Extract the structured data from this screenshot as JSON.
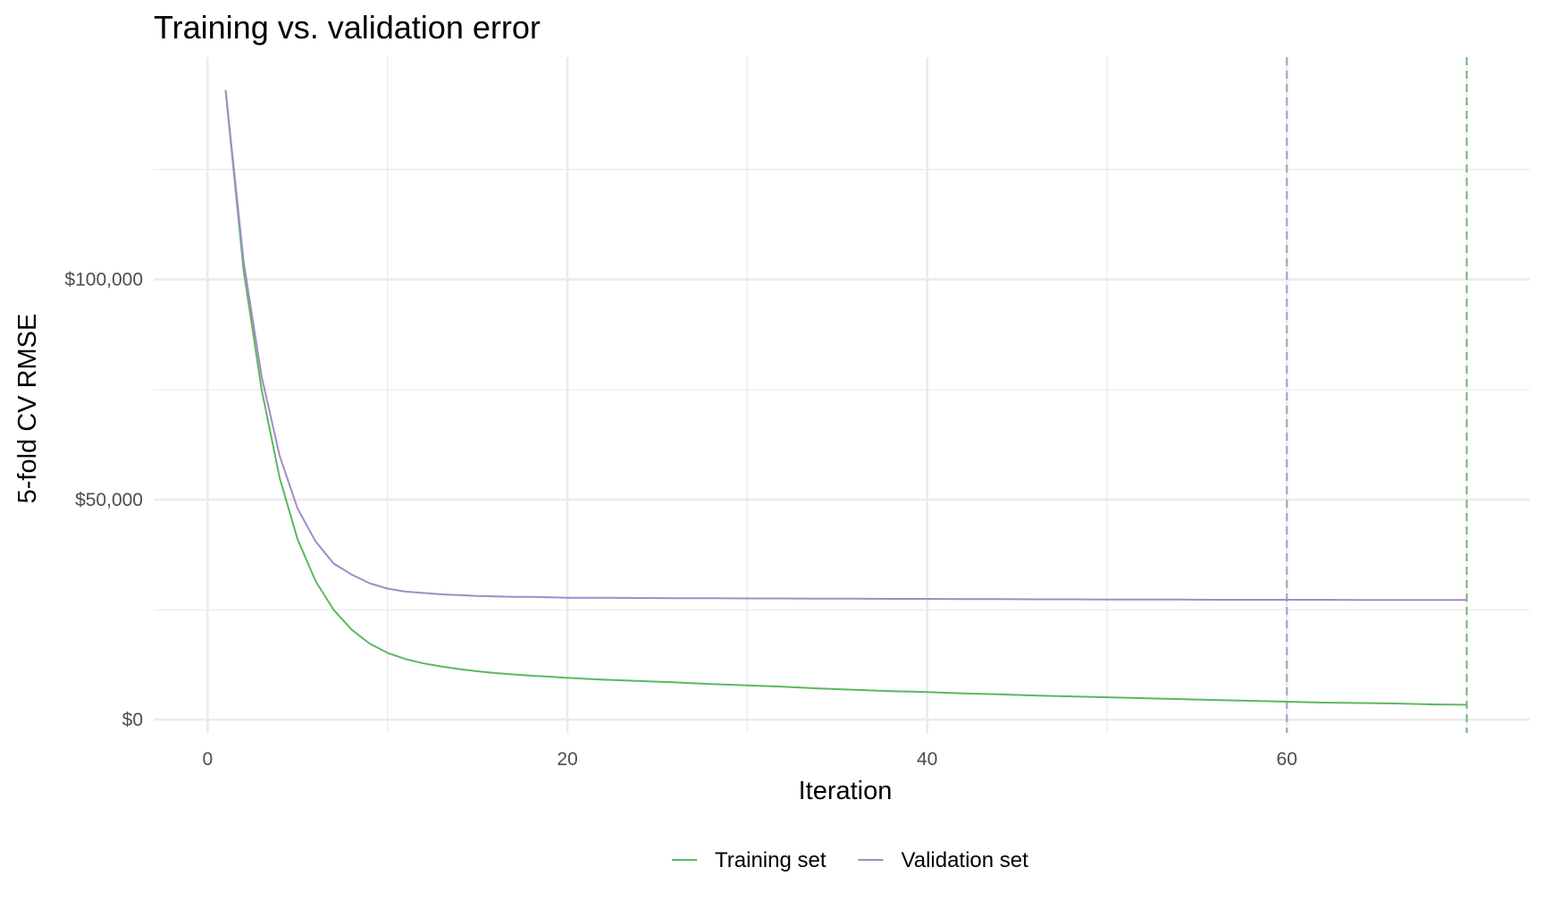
{
  "chart_data": {
    "type": "line",
    "title": "Training vs. validation error",
    "xlabel": "Iteration",
    "ylabel": "5-fold CV RMSE",
    "xlim": [
      -3,
      73.5
    ],
    "ylim": [
      -3000,
      150500
    ],
    "x_ticks": [
      0,
      20,
      40,
      60
    ],
    "x_tick_labels": [
      "0",
      "20",
      "40",
      "60"
    ],
    "y_ticks": [
      0,
      50000,
      100000
    ],
    "y_tick_labels": [
      "$0",
      "$50,000",
      "$100,000"
    ],
    "grid": true,
    "legend_position": "bottom",
    "series": [
      {
        "name": "Training set",
        "color": "#5cb85c",
        "x": [
          1,
          2,
          3,
          4,
          5,
          6,
          7,
          8,
          9,
          10,
          11,
          12,
          13,
          14,
          15,
          16,
          17,
          18,
          19,
          20,
          22,
          24,
          26,
          28,
          30,
          32,
          34,
          36,
          38,
          40,
          42,
          44,
          46,
          48,
          50,
          52,
          54,
          56,
          58,
          60,
          62,
          64,
          66,
          68,
          70
        ],
        "y": [
          143000,
          102000,
          75000,
          55000,
          41000,
          31500,
          25000,
          20500,
          17300,
          15200,
          13800,
          12800,
          12100,
          11500,
          11000,
          10600,
          10300,
          10000,
          9800,
          9500,
          9100,
          8800,
          8500,
          8100,
          7800,
          7500,
          7100,
          6800,
          6500,
          6300,
          6000,
          5800,
          5500,
          5300,
          5100,
          4900,
          4700,
          4500,
          4300,
          4100,
          3900,
          3800,
          3700,
          3500,
          3400
        ]
      },
      {
        "name": "Validation set",
        "color": "#a08cc8",
        "x": [
          1,
          2,
          3,
          4,
          5,
          6,
          7,
          8,
          9,
          10,
          11,
          12,
          13,
          14,
          15,
          16,
          17,
          18,
          19,
          20,
          22,
          24,
          26,
          28,
          30,
          32,
          34,
          36,
          38,
          40,
          42,
          44,
          46,
          48,
          50,
          52,
          54,
          56,
          58,
          60,
          62,
          64,
          66,
          68,
          70
        ],
        "y": [
          143000,
          104000,
          78000,
          60000,
          48000,
          40500,
          35500,
          33000,
          31000,
          29800,
          29100,
          28800,
          28500,
          28300,
          28100,
          28000,
          27900,
          27900,
          27800,
          27700,
          27700,
          27650,
          27600,
          27600,
          27550,
          27550,
          27500,
          27500,
          27450,
          27450,
          27400,
          27400,
          27350,
          27350,
          27300,
          27300,
          27300,
          27250,
          27250,
          27250,
          27250,
          27200,
          27200,
          27200,
          27200
        ]
      }
    ],
    "vlines": [
      {
        "x": 60,
        "color": "#a8a3cc",
        "style": "dashed",
        "series": "Validation set"
      },
      {
        "x": 70,
        "color": "#7ab87a",
        "style": "dashed",
        "series": "Training set"
      }
    ]
  }
}
